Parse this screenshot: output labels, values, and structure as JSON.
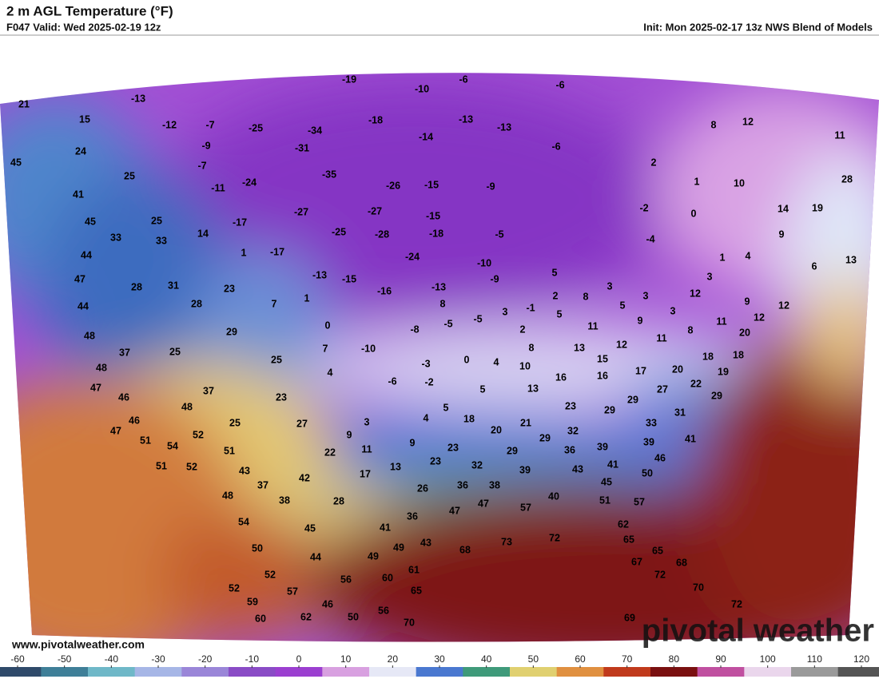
{
  "header": {
    "title": "2 m AGL Temperature (°F)",
    "valid": "F047 Valid: Wed 2025-02-19 12z",
    "init": "Init: Mon 2025-02-17 13z NWS Blend of Models"
  },
  "map": {
    "temperature_labels": [
      21,
      15,
      -13,
      -12,
      -7,
      -25,
      -34,
      -19,
      -10,
      -6,
      -6,
      -18,
      -13,
      -13,
      8,
      12,
      11,
      24,
      -9,
      -31,
      -14,
      -6,
      2,
      45,
      -7,
      -35,
      25,
      -11,
      -24,
      -26,
      -15,
      -9,
      1,
      10,
      28,
      41,
      45,
      25,
      -17,
      -27,
      -27,
      -15,
      -2,
      0,
      14,
      19,
      14,
      -25,
      -28,
      -18,
      -5,
      -4,
      9,
      33,
      33,
      1,
      -17,
      -24,
      -10,
      1,
      4,
      6,
      13,
      44,
      47,
      28,
      31,
      23,
      -13,
      -15,
      -16,
      -13,
      -9,
      5,
      3,
      3,
      12,
      44,
      28,
      7,
      1,
      8,
      3,
      -1,
      2,
      8,
      3,
      3,
      9,
      12,
      5,
      0,
      -8,
      -5,
      -5,
      5,
      9,
      11,
      2,
      8,
      11,
      12,
      20,
      48,
      29,
      37,
      25,
      7,
      -10,
      8,
      13,
      12,
      11,
      15,
      18,
      18,
      25,
      -3,
      0,
      4,
      10,
      16,
      16,
      17,
      20,
      19,
      48,
      47,
      4,
      -6,
      -2,
      5,
      13,
      27,
      22,
      46,
      37,
      23,
      29,
      29,
      48,
      5,
      23,
      29,
      31,
      46,
      25,
      27,
      3,
      4,
      18,
      21,
      33,
      47,
      52,
      9,
      20,
      32,
      29,
      39,
      41,
      51,
      54,
      51,
      11,
      9,
      23,
      39,
      36,
      22,
      51,
      52,
      43,
      13,
      23,
      32,
      29,
      39,
      43,
      41,
      46,
      17,
      42,
      50,
      37,
      45,
      48,
      38,
      28,
      26,
      36,
      38,
      40,
      51,
      57,
      47,
      57,
      47,
      36,
      54,
      45,
      41,
      62,
      50,
      44,
      49,
      49,
      43,
      68,
      73,
      72,
      65,
      65,
      67,
      68,
      52,
      56,
      60,
      61,
      72,
      52,
      57,
      65,
      70,
      59,
      46,
      72,
      56,
      60,
      62,
      50,
      70,
      69
    ]
  },
  "colorbar": {
    "ticks": [
      -60,
      -50,
      -40,
      -30,
      -20,
      -10,
      0,
      10,
      20,
      30,
      40,
      50,
      60,
      70,
      80,
      90,
      100,
      110,
      120
    ]
  },
  "footer": {
    "website": "www.pivotalweather.com",
    "watermark": "pivotal weather"
  }
}
